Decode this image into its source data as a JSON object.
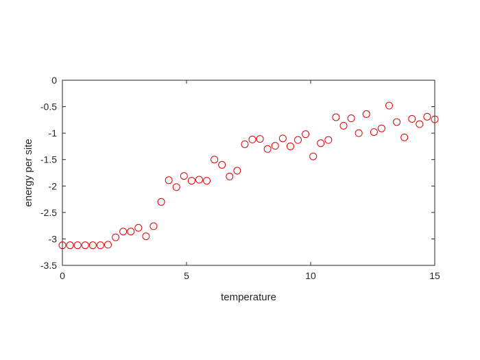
{
  "chart_data": {
    "type": "scatter",
    "title": "",
    "xlabel": "temperature",
    "ylabel": "energy per site",
    "xlim": [
      0,
      15
    ],
    "ylim": [
      -3.5,
      0
    ],
    "xticks": [
      "0",
      "5",
      "10",
      "15"
    ],
    "xtick_values": [
      0,
      5,
      10,
      15
    ],
    "yticks": [
      "0",
      "-0.5",
      "-1",
      "-1.5",
      "-2",
      "-2.5",
      "-3",
      "-3.5"
    ],
    "ytick_values": [
      0,
      -0.5,
      -1,
      -1.5,
      -2,
      -2.5,
      -3,
      -3.5
    ],
    "grid": false,
    "marker": "open-circle",
    "color": "#e00000",
    "series": [
      {
        "x": [
          0,
          0.306,
          0.612,
          0.918,
          1.224,
          1.531,
          1.837,
          2.143,
          2.449,
          2.755,
          3.061,
          3.367,
          3.673,
          3.98,
          4.286,
          4.592,
          4.898,
          5.204,
          5.51,
          5.816,
          6.122,
          6.429,
          6.735,
          7.041,
          7.347,
          7.653,
          7.959,
          8.265,
          8.571,
          8.878,
          9.184,
          9.49,
          9.796,
          10.102,
          10.408,
          10.714,
          11.02,
          11.327,
          11.633,
          11.939,
          12.245,
          12.551,
          12.857,
          13.163,
          13.469,
          13.776,
          14.082,
          14.388,
          14.694,
          15
        ],
        "y": [
          -3.12,
          -3.12,
          -3.12,
          -3.12,
          -3.12,
          -3.12,
          -3.11,
          -2.97,
          -2.86,
          -2.86,
          -2.79,
          -2.95,
          -2.76,
          -2.3,
          -1.89,
          -2.02,
          -1.81,
          -1.9,
          -1.88,
          -1.9,
          -1.5,
          -1.6,
          -1.82,
          -1.71,
          -1.21,
          -1.12,
          -1.11,
          -1.3,
          -1.24,
          -1.1,
          -1.25,
          -1.13,
          -1.02,
          -1.44,
          -1.19,
          -1.13,
          -0.7,
          -0.86,
          -0.72,
          -1.0,
          -0.64,
          -0.98,
          -0.91,
          -0.48,
          -0.79,
          -1.08,
          -0.73,
          -0.83,
          -0.69,
          -0.74
        ]
      }
    ]
  }
}
